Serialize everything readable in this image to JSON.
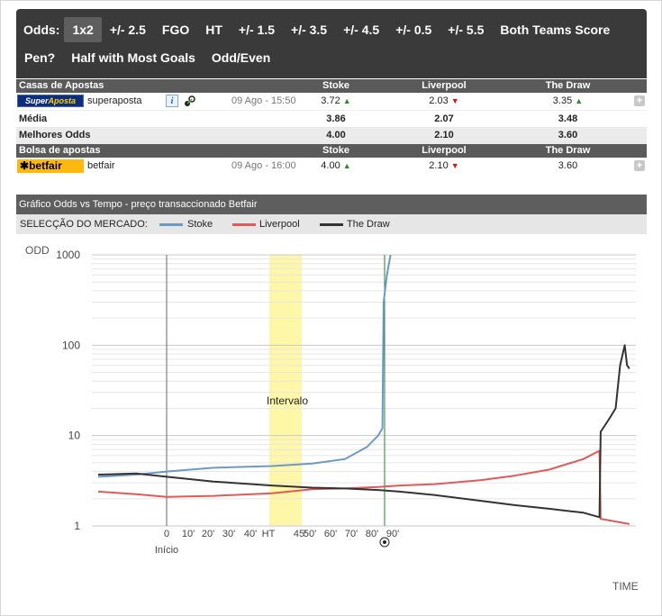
{
  "tabs": {
    "label": "Odds:",
    "row1": [
      "1x2",
      "+/- 2.5",
      "FGO",
      "HT",
      "+/- 1.5",
      "+/- 3.5",
      "+/- 4.5",
      "+/- 0.5",
      "+/- 5.5",
      "Both Teams Score"
    ],
    "row2": [
      "Pen?",
      "Half with Most Goals",
      "Odd/Even"
    ],
    "active": "1x2"
  },
  "bookmakers": {
    "header": {
      "name": "Casas de Apostas",
      "stoke": "Stoke",
      "liverpool": "Liverpool",
      "draw": "The Draw"
    },
    "row": {
      "logo_a": "Super",
      "logo_b": "Aposta",
      "name": "superaposta",
      "info_icon": "i",
      "date": "09 Ago - 15:50",
      "stoke": "3.72",
      "liverpool": "2.03",
      "draw": "3.35",
      "stoke_trend": "up",
      "liverpool_trend": "down",
      "draw_trend": "up"
    },
    "media": {
      "label": "Média",
      "stoke": "3.86",
      "liverpool": "2.07",
      "draw": "3.48"
    },
    "best": {
      "label": "Melhores Odds",
      "stoke": "4.00",
      "liverpool": "2.10",
      "draw": "3.60"
    }
  },
  "exchange": {
    "header": {
      "name": "Bolsa de apostas",
      "stoke": "Stoke",
      "liverpool": "Liverpool",
      "draw": "The Draw"
    },
    "row": {
      "logo": "betfair",
      "name": "betfair",
      "date": "09 Ago - 16:00",
      "stoke": "4.00",
      "liverpool": "2.10",
      "draw": "3.60",
      "stoke_trend": "up",
      "liverpool_trend": "down"
    }
  },
  "icons": {
    "up": "▲",
    "down": "▼",
    "plus": "+",
    "stats": "stats-icon",
    "ball": "soccer-ball-icon"
  },
  "chart_section": {
    "title": "Gráfico Odds vs Tempo - preço transaccionado Betfair",
    "market_label": "SELECÇÃO DO MERCADO:"
  },
  "colors": {
    "stoke": "#6d9ac4",
    "liverpool": "#e05a5a",
    "draw": "#333333",
    "interval": "#fff7a8",
    "goal_line": "#2e7d32"
  },
  "chart_data": {
    "type": "line",
    "ylabel": "ODD",
    "xlabel": "TIME",
    "yscale": "log",
    "ylim": [
      1,
      1000
    ],
    "yticks": [
      "1000",
      "100",
      "10",
      "1"
    ],
    "xticks": [
      "0",
      "10'",
      "20'",
      "30'",
      "40'",
      "HT",
      "45'",
      "50'",
      "60'",
      "70'",
      "80'",
      "90'"
    ],
    "start_label": "Início",
    "interval_label": "Intervalo",
    "series": [
      {
        "name": "Stoke",
        "x": [
          -45,
          -20,
          0,
          20,
          45,
          55,
          70,
          80,
          85,
          87,
          87.5,
          89,
          91
        ],
        "y": [
          3.5,
          3.7,
          4.0,
          4.4,
          4.6,
          4.9,
          5.5,
          7.5,
          10,
          12,
          300,
          600,
          1000
        ]
      },
      {
        "name": "Liverpool",
        "x": [
          -45,
          -20,
          0,
          20,
          45,
          55,
          70,
          85,
          95,
          110,
          130,
          145,
          160,
          175,
          182,
          182.5,
          195
        ],
        "y": [
          2.4,
          2.25,
          2.1,
          2.15,
          2.3,
          2.55,
          2.6,
          2.7,
          2.8,
          2.9,
          3.2,
          3.6,
          4.2,
          5.5,
          6.8,
          1.2,
          1.05
        ]
      },
      {
        "name": "The Draw",
        "x": [
          -45,
          -20,
          0,
          20,
          45,
          55,
          70,
          85,
          95,
          110,
          130,
          145,
          160,
          175,
          182,
          182.5,
          186,
          189,
          191,
          193,
          194,
          195
        ],
        "y": [
          3.7,
          3.8,
          3.5,
          3.1,
          2.8,
          2.65,
          2.6,
          2.5,
          2.4,
          2.2,
          1.9,
          1.7,
          1.55,
          1.4,
          1.25,
          11,
          15,
          20,
          60,
          100,
          60,
          55
        ]
      }
    ]
  }
}
